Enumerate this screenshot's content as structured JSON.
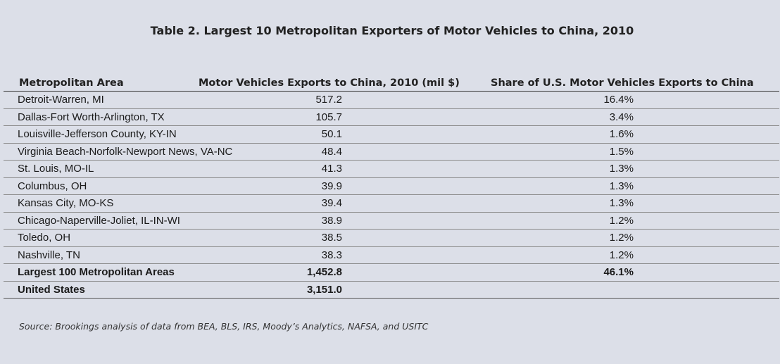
{
  "title": "Table 2. Largest 10 Metropolitan Exporters of Motor Vehicles to China, 2010",
  "columns": [
    "Metropolitan Area",
    "Motor Vehicles Exports to China, 2010 (mil $)",
    "Share of U.S. Motor Vehicles Exports to China"
  ],
  "rows": [
    {
      "area": "Detroit-Warren, MI",
      "exports": "517.2",
      "share": "16.4%"
    },
    {
      "area": "Dallas-Fort Worth-Arlington, TX",
      "exports": "105.7",
      "share": "3.4%"
    },
    {
      "area": "Louisville-Jefferson County, KY-IN",
      "exports": "50.1",
      "share": "1.6%"
    },
    {
      "area": "Virginia Beach-Norfolk-Newport News, VA-NC",
      "exports": "48.4",
      "share": "1.5%"
    },
    {
      "area": "St. Louis, MO-IL",
      "exports": "41.3",
      "share": "1.3%"
    },
    {
      "area": "Columbus, OH",
      "exports": "39.9",
      "share": "1.3%"
    },
    {
      "area": "Kansas City, MO-KS",
      "exports": "39.4",
      "share": "1.3%"
    },
    {
      "area": "Chicago-Naperville-Joliet, IL-IN-WI",
      "exports": "38.9",
      "share": "1.2%"
    },
    {
      "area": "Toledo, OH",
      "exports": "38.5",
      "share": "1.2%"
    },
    {
      "area": "Nashville, TN",
      "exports": "38.3",
      "share": "1.2%"
    }
  ],
  "totals": [
    {
      "area": "Largest 100 Metropolitan Areas",
      "exports": "1,452.8",
      "share": "46.1%"
    },
    {
      "area": "United States",
      "exports": "3,151.0",
      "share": ""
    }
  ],
  "source": "Source: Brookings analysis of data from BEA, BLS, IRS, Moody’s Analytics, NAFSA, and USITC"
}
